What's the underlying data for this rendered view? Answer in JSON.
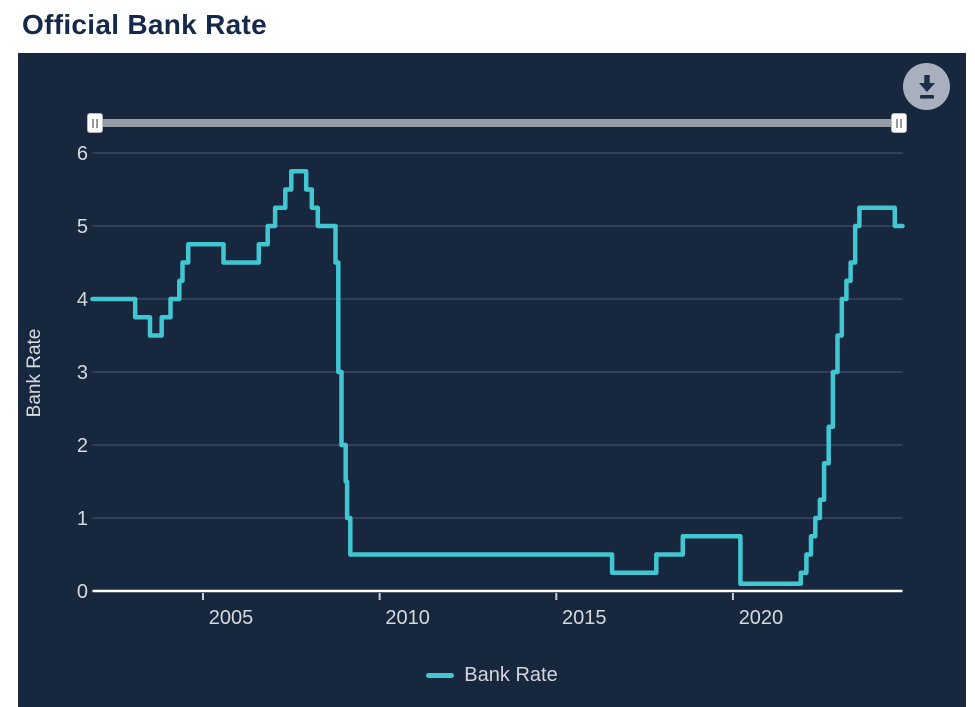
{
  "header": {
    "title": "Official Bank Rate"
  },
  "icons": {
    "download": "download-icon",
    "slider_left_grip": "grip-icon",
    "slider_right_grip": "grip-icon"
  },
  "legend": {
    "label": "Bank Rate"
  },
  "colors": {
    "page_bg": "#ffffff",
    "title_text": "#15294a",
    "chart_bg": "#16273e",
    "series_line": "#41c6d2",
    "gridline": "#43516a",
    "axis_line": "#ffffff",
    "axis_text": "#d6dade",
    "legend_text": "#d3d7dd",
    "slider_track": "#969ca4",
    "slider_handle": "#fdfdfd",
    "download_button_bg": "#a7b0bc",
    "download_icon": "#1e3049"
  },
  "chart_data": {
    "type": "line",
    "step": true,
    "title": "Official Bank Rate",
    "xlabel": "",
    "ylabel": "Bank Rate",
    "ylim": [
      0,
      6.4
    ],
    "xlim": [
      2001.87,
      2024.83
    ],
    "x_ticks": [
      2005,
      2010,
      2015,
      2020
    ],
    "y_ticks": [
      0,
      1,
      2,
      3,
      4,
      5,
      6
    ],
    "grid": true,
    "legend_position": "bottom",
    "series": [
      {
        "name": "Bank Rate",
        "points": [
          [
            2001.87,
            4.0
          ],
          [
            2003.08,
            3.75
          ],
          [
            2003.5,
            3.5
          ],
          [
            2003.83,
            3.75
          ],
          [
            2004.08,
            4.0
          ],
          [
            2004.33,
            4.25
          ],
          [
            2004.42,
            4.5
          ],
          [
            2004.58,
            4.75
          ],
          [
            2005.58,
            4.5
          ],
          [
            2006.58,
            4.75
          ],
          [
            2006.83,
            5.0
          ],
          [
            2007.04,
            5.25
          ],
          [
            2007.33,
            5.5
          ],
          [
            2007.5,
            5.75
          ],
          [
            2007.92,
            5.5
          ],
          [
            2008.08,
            5.25
          ],
          [
            2008.25,
            5.0
          ],
          [
            2008.75,
            4.5
          ],
          [
            2008.83,
            3.0
          ],
          [
            2008.92,
            2.0
          ],
          [
            2009.04,
            1.5
          ],
          [
            2009.08,
            1.0
          ],
          [
            2009.17,
            0.5
          ],
          [
            2016.58,
            0.25
          ],
          [
            2017.83,
            0.5
          ],
          [
            2018.58,
            0.75
          ],
          [
            2020.21,
            0.1
          ],
          [
            2021.92,
            0.25
          ],
          [
            2022.08,
            0.5
          ],
          [
            2022.21,
            0.75
          ],
          [
            2022.33,
            1.0
          ],
          [
            2022.46,
            1.25
          ],
          [
            2022.58,
            1.75
          ],
          [
            2022.71,
            2.25
          ],
          [
            2022.83,
            3.0
          ],
          [
            2022.96,
            3.5
          ],
          [
            2023.08,
            4.0
          ],
          [
            2023.21,
            4.25
          ],
          [
            2023.33,
            4.5
          ],
          [
            2023.46,
            5.0
          ],
          [
            2023.58,
            5.25
          ],
          [
            2024.58,
            5.0
          ]
        ]
      }
    ]
  }
}
